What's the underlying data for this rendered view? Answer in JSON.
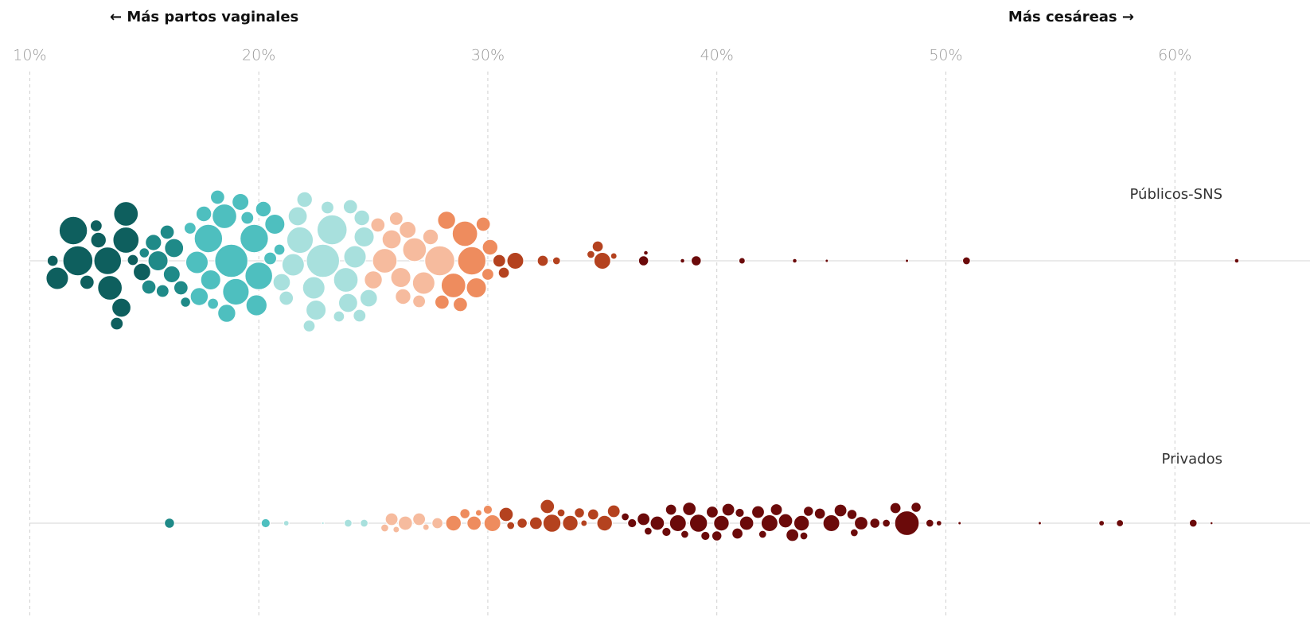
{
  "chart_data": {
    "type": "beeswarm",
    "annotations": [
      "← Más partos vaginales",
      "Más cesáreas →"
    ],
    "xlim": [
      8.7,
      65.9
    ],
    "xticks": [
      {
        "value": 10,
        "label": "10%"
      },
      {
        "value": 20,
        "label": "20%"
      },
      {
        "value": 30,
        "label": "30%"
      },
      {
        "value": 40,
        "label": "40%"
      },
      {
        "value": 50,
        "label": "50%"
      },
      {
        "value": 60,
        "label": "60%"
      }
    ],
    "grid": true,
    "color_scale": {
      "breaks": [
        15,
        17,
        21,
        25,
        28,
        30.5,
        36
      ],
      "colors": [
        "#0e5f5e",
        "#1f8a88",
        "#4ebfbf",
        "#a8e0dd",
        "#f6bb9e",
        "#ee8c5e",
        "#b4421f",
        "#6b0a0a"
      ]
    },
    "series": [
      {
        "name": "Públicos-SNS",
        "values": [
          11.9,
          11.2,
          12.1,
          13.4,
          13.5,
          14.2,
          14.2,
          11.0,
          12.9,
          13.0,
          14.9,
          15.4,
          15.6,
          16.2,
          16.3,
          16.0,
          15.8,
          14.5,
          15.0,
          16.6,
          17.3,
          17.8,
          18.8,
          19.0,
          17.4,
          17.9,
          18.5,
          19.8,
          20.0,
          20.2,
          20.7,
          21.5,
          21.8,
          22.8,
          23.2,
          22.5,
          23.8,
          24.2,
          24.6,
          21.0,
          19.2,
          18.2,
          20.5,
          21.2,
          22.0,
          23.0,
          24.0,
          24.8,
          25.5,
          26.2,
          26.8,
          27.2,
          27.9,
          28.5,
          29.3,
          29.0,
          29.5,
          30.1,
          30.5,
          25.8,
          26.5,
          27.5,
          28.2,
          28.8,
          25.2,
          24.4,
          23.5,
          22.2,
          19.5,
          18.0,
          17.0,
          16.8,
          20.9,
          26.0,
          27.0,
          30.0,
          29.8,
          30.7,
          31.2,
          32.4,
          33.0,
          34.5,
          35.0,
          34.8,
          35.5,
          36.8,
          36.9,
          38.5,
          39.1,
          41.1,
          43.4,
          44.8,
          48.3,
          50.9,
          62.7,
          13.8,
          12.5,
          14.0,
          15.2,
          17.6,
          18.6,
          19.9,
          21.7,
          22.4,
          23.9,
          24.5,
          25.0,
          26.3,
          28.0
        ],
        "sizes": [
          40,
          25,
          45,
          38,
          30,
          34,
          30,
          6,
          7,
          12,
          15,
          13,
          20,
          14,
          18,
          10,
          8,
          6,
          5,
          10,
          25,
          40,
          55,
          35,
          16,
          20,
          30,
          40,
          38,
          12,
          20,
          25,
          35,
          55,
          45,
          20,
          30,
          25,
          20,
          15,
          14,
          10,
          8,
          10,
          12,
          8,
          10,
          15,
          30,
          20,
          28,
          25,
          45,
          30,
          40,
          32,
          20,
          12,
          8,
          18,
          14,
          12,
          16,
          10,
          10,
          8,
          6,
          7,
          8,
          6,
          7,
          5,
          6,
          9,
          8,
          7,
          10,
          6,
          14,
          6,
          3,
          3,
          14,
          6,
          2,
          5,
          1,
          1,
          5,
          2,
          1,
          0.5,
          0.5,
          3,
          1,
          8,
          10,
          18,
          10,
          12,
          16,
          22,
          18,
          25,
          18,
          12,
          16,
          12,
          10
        ]
      },
      {
        "name": "Privados",
        "values": [
          16.1,
          20.3,
          21.2,
          22.8,
          23.9,
          24.6,
          25.5,
          25.8,
          26.4,
          27.0,
          27.8,
          28.5,
          29.4,
          29.0,
          30.2,
          30.8,
          31.5,
          32.1,
          32.8,
          32.6,
          33.6,
          34.0,
          34.6,
          35.1,
          35.5,
          36.3,
          36.8,
          37.4,
          38.0,
          38.3,
          38.8,
          39.2,
          39.8,
          40.2,
          40.5,
          40.9,
          41.3,
          41.8,
          42.3,
          42.6,
          43.0,
          43.3,
          43.7,
          44.5,
          45.0,
          45.4,
          45.9,
          46.3,
          46.9,
          47.4,
          48.3,
          47.8,
          48.7,
          49.3,
          49.7,
          50.6,
          54.1,
          56.8,
          57.6,
          60.8,
          61.6,
          30.0,
          31.0,
          33.2,
          36.0,
          37.0,
          39.5,
          41.0,
          44.0,
          42.0,
          38.6,
          34.2,
          29.6,
          27.3,
          26.0,
          43.8,
          46.0,
          40.0,
          37.8
        ],
        "sizes": [
          5,
          4,
          1.5,
          0.3,
          3,
          3,
          3,
          8,
          10,
          8,
          6,
          12,
          10,
          5,
          14,
          10,
          5,
          8,
          16,
          10,
          12,
          5,
          6,
          12,
          8,
          4,
          8,
          10,
          6,
          14,
          9,
          16,
          7,
          12,
          8,
          6,
          10,
          8,
          14,
          7,
          10,
          8,
          12,
          6,
          14,
          8,
          5,
          9,
          5,
          3,
          30,
          6,
          5,
          3,
          1.5,
          0.5,
          0.5,
          1.5,
          2.5,
          3,
          0.4,
          4,
          3,
          3,
          3,
          3,
          4,
          4,
          5,
          3,
          3,
          2,
          2,
          2,
          2,
          3,
          3,
          5,
          4
        ]
      }
    ]
  }
}
